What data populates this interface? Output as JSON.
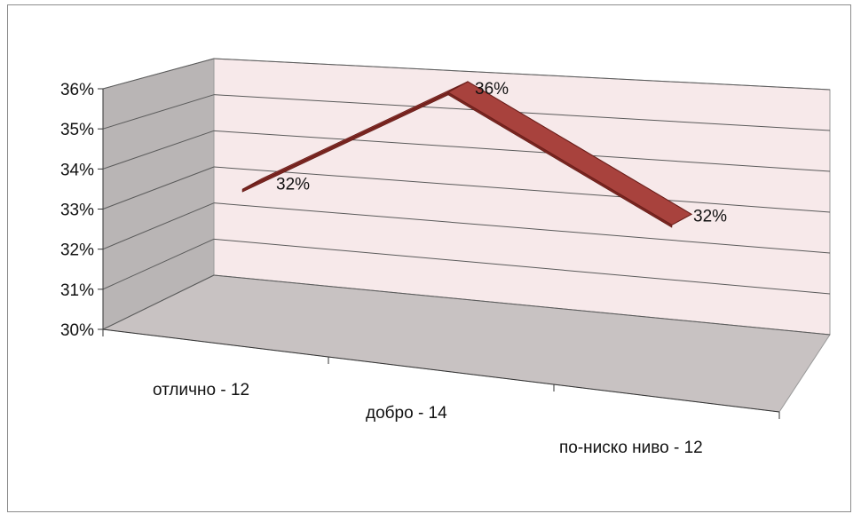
{
  "chart_data": {
    "type": "line",
    "style": "3d-ribbon",
    "categories": [
      "отлично - 12",
      "добро - 14",
      "по-ниско ниво - 12"
    ],
    "values": [
      0.32,
      0.36,
      0.32
    ],
    "data_labels": [
      "32%",
      "36%",
      "32%"
    ],
    "yticks": [
      "30%",
      "31%",
      "32%",
      "33%",
      "34%",
      "35%",
      "36%"
    ],
    "ylim": [
      0.3,
      0.36
    ],
    "title": "",
    "xlabel": "",
    "ylabel": "",
    "grid": true,
    "legend": "none",
    "colors": {
      "ribbon_top": "#a8423d",
      "ribbon_side": "#7a2520",
      "back_wall": "#f7e9ea",
      "side_wall": "#b9b5b5",
      "floor": "#c8c2c2",
      "gridline": "#5a5a5a"
    }
  }
}
